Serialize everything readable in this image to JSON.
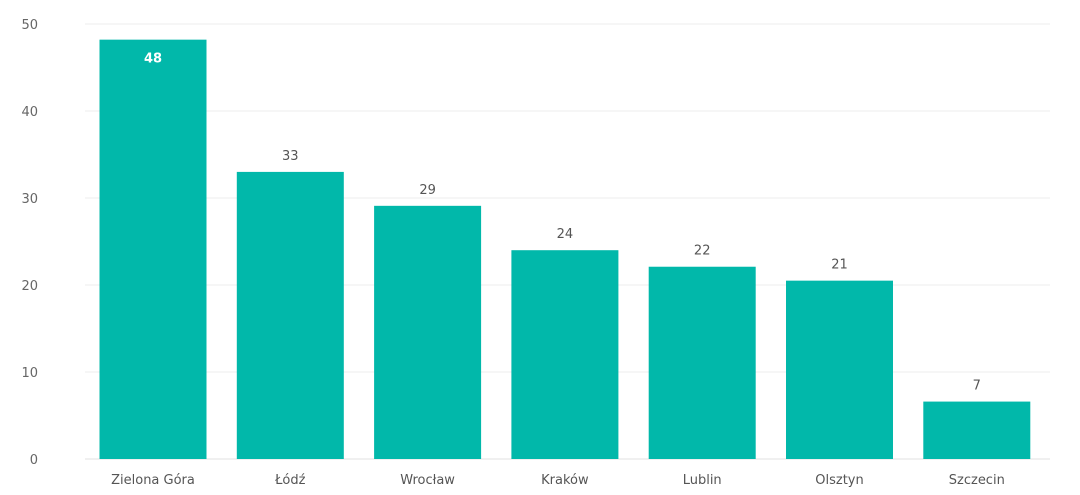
{
  "chart_data": {
    "type": "bar",
    "title": "",
    "xlabel": "",
    "ylabel": "",
    "categories": [
      "Zielona Góra",
      "Łódź",
      "Wrocław",
      "Kraków",
      "Lublin",
      "Olsztyn",
      "Szczecin"
    ],
    "values": [
      48.2,
      33.0,
      29.1,
      24.0,
      22.1,
      20.5,
      6.6
    ],
    "data_labels": [
      "48",
      "33",
      "29",
      "24",
      "22",
      "21",
      "7"
    ],
    "ylim": [
      0,
      50
    ],
    "yticks": [
      0,
      10,
      20,
      30,
      40,
      50
    ],
    "grid": true,
    "legend": "none",
    "colors": {
      "bar": "#01B8AA"
    }
  }
}
